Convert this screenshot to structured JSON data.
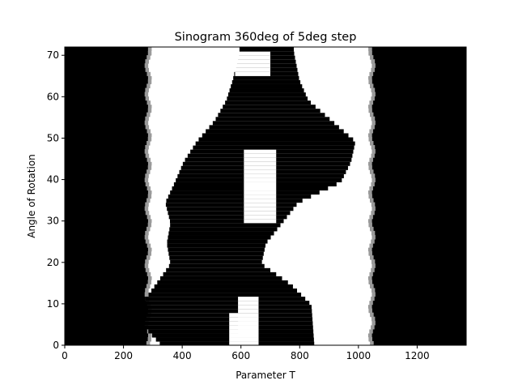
{
  "chart_data": {
    "type": "heatmap",
    "title": "Sinogram 360deg of 5deg step",
    "xlabel": "Parameter T",
    "ylabel": "Angle of Rotation",
    "xlim": [
      0,
      1367
    ],
    "ylim": [
      0,
      72
    ],
    "x_ticks": [
      0,
      200,
      400,
      600,
      800,
      1000,
      1200
    ],
    "y_ticks": [
      0,
      10,
      20,
      30,
      40,
      50,
      60,
      70
    ],
    "colormap": "gray",
    "grid": false,
    "rows": 73,
    "regions": {
      "left_dark_band": [
        0,
        270
      ],
      "right_dark_band": [
        1060,
        1367
      ],
      "bright_boundary_left": [
        270,
        300
      ],
      "bright_boundary_right": [
        1020,
        1060
      ]
    },
    "strand_a": {
      "name_points": [
        [
          0,
          400
        ],
        [
          5,
          360
        ],
        [
          10,
          380
        ],
        [
          20,
          470
        ],
        [
          25,
          430
        ],
        [
          35,
          400
        ],
        [
          45,
          470
        ],
        [
          55,
          570
        ],
        [
          60,
          600
        ],
        [
          65,
          620
        ],
        [
          72,
          640
        ]
      ],
      "half_width": [
        [
          0,
          70
        ],
        [
          10,
          120
        ],
        [
          20,
          110
        ],
        [
          30,
          55
        ],
        [
          40,
          60
        ],
        [
          50,
          70
        ],
        [
          55,
          60
        ],
        [
          60,
          50
        ],
        [
          72,
          45
        ]
      ]
    },
    "strand_b": {
      "name_points": [
        [
          0,
          720
        ],
        [
          10,
          700
        ],
        [
          15,
          670
        ],
        [
          20,
          610
        ],
        [
          25,
          600
        ],
        [
          35,
          660
        ],
        [
          40,
          780
        ],
        [
          45,
          820
        ],
        [
          50,
          840
        ],
        [
          55,
          780
        ],
        [
          60,
          720
        ],
        [
          65,
          710
        ],
        [
          72,
          720
        ]
      ],
      "half_width": [
        [
          0,
          130
        ],
        [
          10,
          140
        ],
        [
          20,
          60
        ],
        [
          30,
          110
        ],
        [
          40,
          160
        ],
        [
          50,
          150
        ],
        [
          60,
          110
        ],
        [
          72,
          60
        ]
      ]
    },
    "holes": [
      {
        "t_range": [
          590,
          660
        ],
        "y_range": [
          0,
          12
        ]
      },
      {
        "t_range": [
          560,
          660
        ],
        "y_range": [
          0,
          8
        ]
      },
      {
        "t_range": [
          610,
          720
        ],
        "y_range": [
          30,
          48
        ]
      },
      {
        "t_range": [
          580,
          700
        ],
        "y_range": [
          66,
          72
        ]
      }
    ]
  }
}
